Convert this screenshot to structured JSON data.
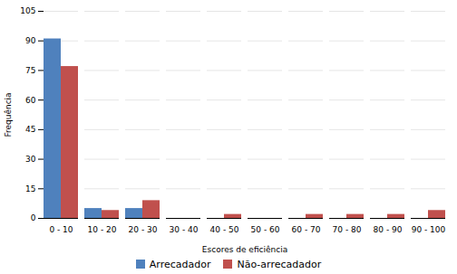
{
  "chart_data": {
    "type": "bar",
    "categories": [
      "0 - 10",
      "10 - 20",
      "20 - 30",
      "30 - 40",
      "40 - 50",
      "50 - 60",
      "60 - 70",
      "70 - 80",
      "80 - 90",
      "90 - 100"
    ],
    "series": [
      {
        "name": "Arrecadador",
        "color": "#4F81BD",
        "values": [
          91,
          5,
          5,
          0,
          0,
          0,
          0,
          0,
          0,
          0
        ]
      },
      {
        "name": "Não-arrecadador",
        "color": "#C0504D",
        "values": [
          77,
          4,
          9,
          0,
          2,
          0,
          2,
          2,
          2,
          4
        ]
      }
    ],
    "xlabel": "Escores de eficiência",
    "ylabel": "Frequência",
    "ylim": [
      0,
      105
    ],
    "yticks": [
      0,
      15,
      30,
      45,
      60,
      75,
      90,
      105
    ],
    "grid": true,
    "legend": "bottom"
  }
}
